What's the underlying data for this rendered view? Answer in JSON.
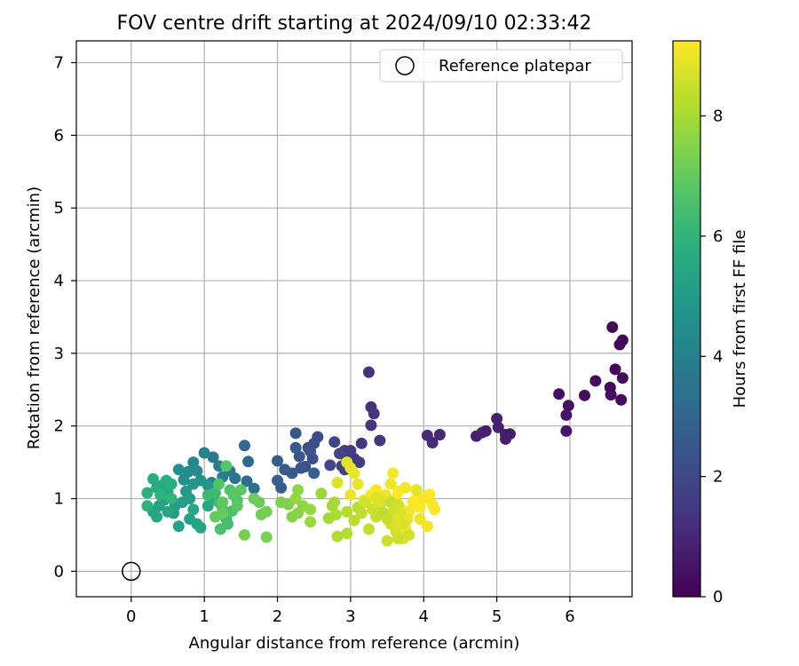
{
  "chart_data": {
    "type": "scatter",
    "title": "FOV centre drift starting at 2024/09/10 02:33:42",
    "xlabel": "Angular distance from reference (arcmin)",
    "ylabel": "Rotation from reference (arcmin)",
    "xlim": [
      -0.75,
      6.85
    ],
    "ylim": [
      -0.35,
      7.3
    ],
    "xticks": [
      "0",
      "1",
      "2",
      "3",
      "4",
      "5",
      "6"
    ],
    "yticks": [
      "0",
      "1",
      "2",
      "3",
      "4",
      "5",
      "6",
      "7"
    ],
    "grid": true,
    "legend": {
      "placement": "top-right",
      "entries": [
        "Reference platepar"
      ]
    },
    "reference_point": {
      "x": 0,
      "y": 0
    },
    "colorbar": {
      "label": "Hours from first FF file",
      "colormap": "viridis",
      "range": [
        0,
        9.25
      ],
      "ticks": [
        "0",
        "2",
        "4",
        "6",
        "8"
      ]
    },
    "series": [
      {
        "color_value": "hours",
        "points": [
          [
            6.58,
            3.36,
            0.1
          ],
          [
            6.72,
            3.18,
            0.1
          ],
          [
            6.68,
            3.12,
            0.12
          ],
          [
            6.62,
            2.78,
            0.18
          ],
          [
            6.72,
            2.66,
            0.2
          ],
          [
            6.55,
            2.53,
            0.22
          ],
          [
            6.7,
            2.36,
            0.25
          ],
          [
            6.56,
            2.43,
            0.28
          ],
          [
            6.35,
            2.62,
            0.3
          ],
          [
            6.2,
            2.42,
            0.35
          ],
          [
            5.98,
            2.28,
            0.4
          ],
          [
            5.85,
            2.44,
            0.45
          ],
          [
            5.95,
            2.15,
            0.5
          ],
          [
            5.95,
            1.93,
            0.55
          ],
          [
            5.18,
            1.89,
            0.7
          ],
          [
            5.12,
            1.88,
            0.72
          ],
          [
            5.12,
            1.82,
            0.75
          ],
          [
            5.0,
            2.1,
            0.78
          ],
          [
            5.02,
            1.98,
            0.8
          ],
          [
            4.85,
            1.93,
            0.85
          ],
          [
            4.8,
            1.91,
            0.88
          ],
          [
            4.72,
            1.86,
            0.9
          ],
          [
            4.22,
            1.88,
            1.0
          ],
          [
            4.12,
            1.77,
            1.05
          ],
          [
            4.05,
            1.87,
            1.08
          ],
          [
            3.25,
            2.74,
            1.3
          ],
          [
            3.28,
            2.26,
            1.35
          ],
          [
            3.32,
            2.17,
            1.38
          ],
          [
            3.28,
            2.01,
            1.4
          ],
          [
            3.4,
            1.8,
            1.45
          ],
          [
            3.15,
            1.76,
            1.5
          ],
          [
            3.0,
            1.66,
            1.55
          ],
          [
            2.92,
            1.66,
            1.6
          ],
          [
            3.05,
            1.55,
            1.65
          ],
          [
            3.12,
            1.5,
            1.7
          ],
          [
            2.95,
            1.55,
            1.75
          ],
          [
            2.92,
            1.4,
            1.8
          ],
          [
            2.88,
            1.45,
            1.85
          ],
          [
            2.85,
            1.62,
            1.9
          ],
          [
            2.78,
            1.78,
            1.95
          ],
          [
            2.72,
            1.46,
            2.0
          ],
          [
            2.55,
            1.85,
            2.1
          ],
          [
            2.5,
            1.76,
            2.15
          ],
          [
            2.42,
            1.7,
            2.2
          ],
          [
            2.48,
            1.55,
            2.25
          ],
          [
            2.45,
            1.65,
            2.3
          ],
          [
            2.38,
            1.44,
            2.35
          ],
          [
            2.3,
            1.58,
            2.4
          ],
          [
            2.32,
            1.42,
            2.45
          ],
          [
            2.25,
            1.9,
            2.5
          ],
          [
            2.25,
            1.7,
            2.55
          ],
          [
            2.2,
            1.35,
            2.6
          ],
          [
            2.1,
            1.4,
            2.65
          ],
          [
            2.05,
            1.15,
            2.7
          ],
          [
            2.0,
            1.52,
            2.75
          ],
          [
            2.0,
            1.25,
            2.8
          ],
          [
            2.5,
            1.35,
            2.85
          ],
          [
            1.55,
            1.73,
            3.1
          ],
          [
            1.6,
            1.51,
            3.2
          ],
          [
            1.58,
            1.24,
            3.3
          ],
          [
            1.68,
            1.14,
            3.4
          ],
          [
            1.42,
            1.28,
            3.5
          ],
          [
            1.35,
            1.38,
            3.6
          ],
          [
            1.12,
            1.57,
            3.7
          ],
          [
            1.2,
            1.45,
            3.8
          ],
          [
            1.25,
            1.3,
            3.9
          ],
          [
            1.1,
            1.22,
            4.0
          ],
          [
            1.0,
            1.63,
            4.05
          ],
          [
            0.85,
            1.5,
            4.2
          ],
          [
            0.9,
            1.38,
            4.3
          ],
          [
            0.78,
            1.37,
            4.4
          ],
          [
            0.72,
            1.26,
            4.5
          ],
          [
            0.65,
            1.4,
            4.6
          ],
          [
            0.95,
            1.25,
            4.7
          ],
          [
            1.05,
            1.18,
            4.8
          ],
          [
            0.85,
            1.2,
            4.9
          ],
          [
            0.75,
            1.1,
            5.0
          ],
          [
            0.8,
            1.0,
            5.05
          ],
          [
            0.7,
            0.95,
            5.1
          ],
          [
            0.6,
            0.9,
            5.15
          ],
          [
            0.58,
            0.8,
            5.2
          ],
          [
            0.65,
            0.62,
            5.25
          ],
          [
            0.8,
            0.72,
            5.3
          ],
          [
            0.9,
            0.65,
            5.35
          ],
          [
            0.95,
            0.6,
            5.4
          ],
          [
            0.85,
            0.85,
            5.45
          ],
          [
            1.05,
            0.9,
            5.5
          ],
          [
            1.1,
            1.0,
            5.55
          ],
          [
            0.45,
            0.98,
            5.3
          ],
          [
            0.38,
            0.9,
            5.35
          ],
          [
            0.3,
            0.82,
            5.4
          ],
          [
            0.35,
            0.75,
            5.45
          ],
          [
            0.5,
            0.82,
            5.5
          ],
          [
            0.5,
            1.1,
            5.55
          ],
          [
            0.42,
            1.18,
            5.6
          ],
          [
            0.35,
            1.15,
            5.65
          ],
          [
            0.3,
            1.27,
            5.7
          ],
          [
            0.48,
            1.25,
            5.75
          ],
          [
            0.55,
            1.2,
            5.8
          ],
          [
            0.22,
            1.08,
            5.85
          ],
          [
            0.22,
            0.9,
            5.9
          ],
          [
            0.4,
            1.05,
            5.95
          ],
          [
            0.55,
            1.0,
            6.0
          ],
          [
            1.05,
            1.05,
            6.2
          ],
          [
            1.15,
            1.08,
            6.25
          ],
          [
            1.2,
            0.95,
            6.3
          ],
          [
            1.25,
            0.85,
            6.35
          ],
          [
            1.3,
            0.72,
            6.4
          ],
          [
            1.32,
            0.65,
            6.45
          ],
          [
            1.22,
            0.58,
            6.5
          ],
          [
            1.38,
            0.83,
            6.55
          ],
          [
            1.45,
            0.97,
            6.6
          ],
          [
            1.35,
            1.12,
            6.65
          ],
          [
            1.2,
            1.2,
            6.7
          ],
          [
            1.3,
            1.45,
            6.75
          ],
          [
            1.4,
            1.05,
            6.8
          ],
          [
            1.5,
            1.12,
            6.85
          ],
          [
            1.45,
            0.9,
            6.9
          ],
          [
            1.25,
            0.95,
            6.95
          ],
          [
            1.15,
            0.75,
            7.0
          ],
          [
            1.25,
            0.8,
            7.05
          ],
          [
            1.68,
            1.0,
            7.1
          ],
          [
            1.75,
            0.95,
            7.15
          ],
          [
            1.78,
            0.78,
            7.2
          ],
          [
            1.85,
            0.82,
            7.25
          ],
          [
            1.55,
            0.5,
            7.3
          ],
          [
            1.85,
            0.47,
            7.35
          ],
          [
            2.05,
            0.95,
            7.4
          ],
          [
            2.15,
            0.92,
            7.45
          ],
          [
            2.2,
            0.75,
            7.5
          ],
          [
            2.28,
            0.8,
            7.55
          ],
          [
            2.35,
            0.9,
            7.6
          ],
          [
            2.28,
            1.12,
            7.65
          ],
          [
            2.25,
            1.0,
            7.7
          ],
          [
            2.45,
            0.85,
            7.75
          ],
          [
            2.45,
            0.68,
            7.8
          ],
          [
            2.6,
            1.07,
            7.85
          ],
          [
            2.7,
            0.73,
            7.9
          ],
          [
            2.75,
            0.9,
            7.95
          ],
          [
            2.78,
            0.95,
            8.0
          ],
          [
            2.8,
            0.78,
            8.05
          ],
          [
            2.82,
            0.48,
            8.1
          ],
          [
            2.95,
            0.52,
            8.15
          ],
          [
            2.95,
            0.82,
            8.2
          ],
          [
            3.05,
            0.7,
            8.25
          ],
          [
            3.1,
            0.88,
            8.3
          ],
          [
            3.15,
            0.8,
            8.35
          ],
          [
            3.25,
            0.58,
            8.4
          ],
          [
            3.35,
            0.75,
            8.45
          ],
          [
            3.45,
            0.8,
            8.5
          ],
          [
            3.5,
            0.42,
            8.55
          ],
          [
            3.55,
            0.65,
            8.6
          ],
          [
            3.62,
            0.55,
            8.65
          ],
          [
            3.68,
            0.57,
            8.7
          ],
          [
            3.72,
            0.45,
            8.75
          ],
          [
            2.82,
            1.22,
            8.8
          ],
          [
            2.95,
            1.5,
            8.85
          ],
          [
            3.0,
            1.42,
            8.9
          ],
          [
            3.05,
            1.35,
            8.95
          ],
          [
            3.1,
            1.2,
            9.0
          ],
          [
            3.0,
            1.05,
            9.05
          ],
          [
            3.18,
            0.98,
            9.1
          ],
          [
            3.28,
            1.05,
            9.15
          ],
          [
            3.3,
            0.9,
            9.2
          ],
          [
            3.35,
            1.12,
            9.2
          ],
          [
            3.48,
            1.05,
            9.0
          ],
          [
            3.55,
            1.2,
            9.05
          ],
          [
            3.58,
            1.35,
            9.1
          ],
          [
            3.62,
            1.0,
            9.15
          ],
          [
            3.65,
            1.1,
            9.2
          ],
          [
            3.7,
            0.85,
            9.2
          ],
          [
            3.75,
            1.15,
            9.1
          ],
          [
            3.8,
            0.82,
            9.15
          ],
          [
            3.85,
            0.95,
            9.2
          ],
          [
            3.9,
            1.0,
            9.25
          ],
          [
            3.95,
            0.88,
            9.2
          ],
          [
            4.0,
            1.0,
            9.15
          ],
          [
            4.05,
            0.62,
            9.1
          ],
          [
            4.08,
            1.06,
            9.2
          ],
          [
            4.12,
            0.92,
            9.25
          ],
          [
            4.15,
            0.85,
            9.2
          ],
          [
            3.75,
            0.6,
            9.1
          ],
          [
            3.9,
            1.12,
            8.9
          ],
          [
            3.78,
            0.72,
            8.95
          ],
          [
            3.95,
            0.72,
            9.0
          ],
          [
            3.4,
            0.92,
            8.2
          ],
          [
            3.45,
            0.8,
            8.3
          ],
          [
            3.55,
            0.95,
            8.4
          ],
          [
            3.58,
            0.82,
            8.5
          ],
          [
            3.65,
            0.92,
            8.6
          ],
          [
            3.68,
            0.8,
            8.7
          ],
          [
            3.72,
            0.65,
            8.75
          ],
          [
            3.6,
            0.7,
            8.8
          ],
          [
            3.8,
            0.5,
            8.6
          ],
          [
            3.65,
            0.45,
            8.5
          ],
          [
            3.5,
            0.72,
            8.45
          ],
          [
            3.3,
            0.85,
            8.5
          ],
          [
            3.2,
            0.95,
            8.6
          ],
          [
            3.4,
            0.95,
            8.7
          ],
          [
            3.35,
            1.02,
            8.8
          ]
        ]
      }
    ]
  }
}
